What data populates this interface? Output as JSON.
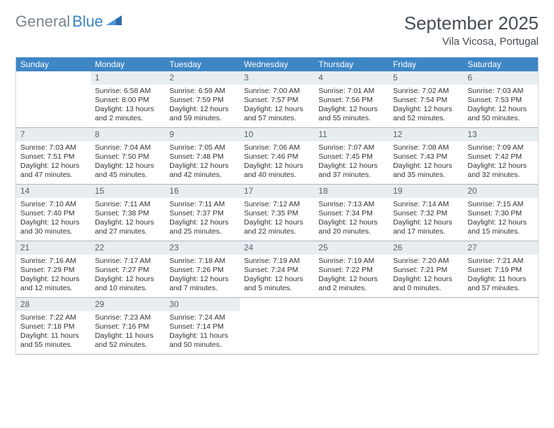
{
  "logo": {
    "part1": "General",
    "part2": "Blue"
  },
  "title": "September 2025",
  "location": "Vila Vicosa, Portugal",
  "colors": {
    "header_bg": "#3f86c5",
    "header_text": "#ffffff",
    "daynum_bg": "#e8edf0",
    "daynum_text": "#55616a",
    "border": "#a9b6c0",
    "logo_gray": "#7a8690",
    "logo_blue": "#3a83c3"
  },
  "day_names": [
    "Sunday",
    "Monday",
    "Tuesday",
    "Wednesday",
    "Thursday",
    "Friday",
    "Saturday"
  ],
  "weeks": [
    [
      {
        "n": "",
        "sr": "",
        "ss": "",
        "dl": ""
      },
      {
        "n": "1",
        "sr": "Sunrise: 6:58 AM",
        "ss": "Sunset: 8:00 PM",
        "dl": "Daylight: 13 hours and 2 minutes."
      },
      {
        "n": "2",
        "sr": "Sunrise: 6:59 AM",
        "ss": "Sunset: 7:59 PM",
        "dl": "Daylight: 12 hours and 59 minutes."
      },
      {
        "n": "3",
        "sr": "Sunrise: 7:00 AM",
        "ss": "Sunset: 7:57 PM",
        "dl": "Daylight: 12 hours and 57 minutes."
      },
      {
        "n": "4",
        "sr": "Sunrise: 7:01 AM",
        "ss": "Sunset: 7:56 PM",
        "dl": "Daylight: 12 hours and 55 minutes."
      },
      {
        "n": "5",
        "sr": "Sunrise: 7:02 AM",
        "ss": "Sunset: 7:54 PM",
        "dl": "Daylight: 12 hours and 52 minutes."
      },
      {
        "n": "6",
        "sr": "Sunrise: 7:03 AM",
        "ss": "Sunset: 7:53 PM",
        "dl": "Daylight: 12 hours and 50 minutes."
      }
    ],
    [
      {
        "n": "7",
        "sr": "Sunrise: 7:03 AM",
        "ss": "Sunset: 7:51 PM",
        "dl": "Daylight: 12 hours and 47 minutes."
      },
      {
        "n": "8",
        "sr": "Sunrise: 7:04 AM",
        "ss": "Sunset: 7:50 PM",
        "dl": "Daylight: 12 hours and 45 minutes."
      },
      {
        "n": "9",
        "sr": "Sunrise: 7:05 AM",
        "ss": "Sunset: 7:48 PM",
        "dl": "Daylight: 12 hours and 42 minutes."
      },
      {
        "n": "10",
        "sr": "Sunrise: 7:06 AM",
        "ss": "Sunset: 7:46 PM",
        "dl": "Daylight: 12 hours and 40 minutes."
      },
      {
        "n": "11",
        "sr": "Sunrise: 7:07 AM",
        "ss": "Sunset: 7:45 PM",
        "dl": "Daylight: 12 hours and 37 minutes."
      },
      {
        "n": "12",
        "sr": "Sunrise: 7:08 AM",
        "ss": "Sunset: 7:43 PM",
        "dl": "Daylight: 12 hours and 35 minutes."
      },
      {
        "n": "13",
        "sr": "Sunrise: 7:09 AM",
        "ss": "Sunset: 7:42 PM",
        "dl": "Daylight: 12 hours and 32 minutes."
      }
    ],
    [
      {
        "n": "14",
        "sr": "Sunrise: 7:10 AM",
        "ss": "Sunset: 7:40 PM",
        "dl": "Daylight: 12 hours and 30 minutes."
      },
      {
        "n": "15",
        "sr": "Sunrise: 7:11 AM",
        "ss": "Sunset: 7:38 PM",
        "dl": "Daylight: 12 hours and 27 minutes."
      },
      {
        "n": "16",
        "sr": "Sunrise: 7:11 AM",
        "ss": "Sunset: 7:37 PM",
        "dl": "Daylight: 12 hours and 25 minutes."
      },
      {
        "n": "17",
        "sr": "Sunrise: 7:12 AM",
        "ss": "Sunset: 7:35 PM",
        "dl": "Daylight: 12 hours and 22 minutes."
      },
      {
        "n": "18",
        "sr": "Sunrise: 7:13 AM",
        "ss": "Sunset: 7:34 PM",
        "dl": "Daylight: 12 hours and 20 minutes."
      },
      {
        "n": "19",
        "sr": "Sunrise: 7:14 AM",
        "ss": "Sunset: 7:32 PM",
        "dl": "Daylight: 12 hours and 17 minutes."
      },
      {
        "n": "20",
        "sr": "Sunrise: 7:15 AM",
        "ss": "Sunset: 7:30 PM",
        "dl": "Daylight: 12 hours and 15 minutes."
      }
    ],
    [
      {
        "n": "21",
        "sr": "Sunrise: 7:16 AM",
        "ss": "Sunset: 7:29 PM",
        "dl": "Daylight: 12 hours and 12 minutes."
      },
      {
        "n": "22",
        "sr": "Sunrise: 7:17 AM",
        "ss": "Sunset: 7:27 PM",
        "dl": "Daylight: 12 hours and 10 minutes."
      },
      {
        "n": "23",
        "sr": "Sunrise: 7:18 AM",
        "ss": "Sunset: 7:26 PM",
        "dl": "Daylight: 12 hours and 7 minutes."
      },
      {
        "n": "24",
        "sr": "Sunrise: 7:19 AM",
        "ss": "Sunset: 7:24 PM",
        "dl": "Daylight: 12 hours and 5 minutes."
      },
      {
        "n": "25",
        "sr": "Sunrise: 7:19 AM",
        "ss": "Sunset: 7:22 PM",
        "dl": "Daylight: 12 hours and 2 minutes."
      },
      {
        "n": "26",
        "sr": "Sunrise: 7:20 AM",
        "ss": "Sunset: 7:21 PM",
        "dl": "Daylight: 12 hours and 0 minutes."
      },
      {
        "n": "27",
        "sr": "Sunrise: 7:21 AM",
        "ss": "Sunset: 7:19 PM",
        "dl": "Daylight: 11 hours and 57 minutes."
      }
    ],
    [
      {
        "n": "28",
        "sr": "Sunrise: 7:22 AM",
        "ss": "Sunset: 7:18 PM",
        "dl": "Daylight: 11 hours and 55 minutes."
      },
      {
        "n": "29",
        "sr": "Sunrise: 7:23 AM",
        "ss": "Sunset: 7:16 PM",
        "dl": "Daylight: 11 hours and 52 minutes."
      },
      {
        "n": "30",
        "sr": "Sunrise: 7:24 AM",
        "ss": "Sunset: 7:14 PM",
        "dl": "Daylight: 11 hours and 50 minutes."
      },
      {
        "n": "",
        "sr": "",
        "ss": "",
        "dl": ""
      },
      {
        "n": "",
        "sr": "",
        "ss": "",
        "dl": ""
      },
      {
        "n": "",
        "sr": "",
        "ss": "",
        "dl": ""
      },
      {
        "n": "",
        "sr": "",
        "ss": "",
        "dl": ""
      }
    ]
  ]
}
